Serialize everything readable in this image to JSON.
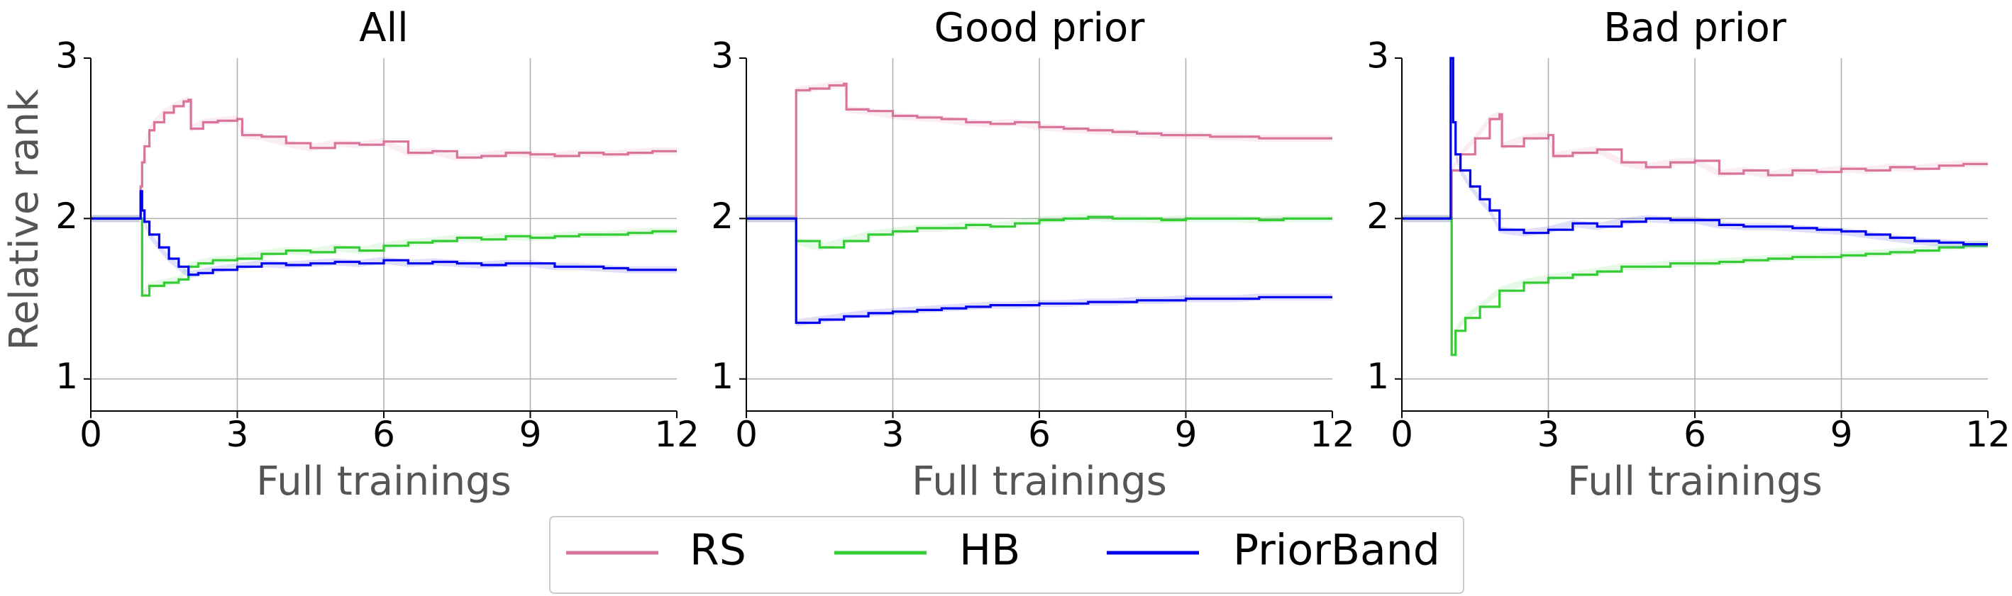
{
  "chart_data": {
    "type": "line",
    "ylabel": "Relative rank",
    "grid": true,
    "legend_position": "bottom-center",
    "series_styles": [
      {
        "name": "RS",
        "color": "#d9739b"
      },
      {
        "name": "HB",
        "color": "#33cc33"
      },
      {
        "name": "PriorBand",
        "color": "#0000ee"
      }
    ],
    "panels": [
      {
        "title": "All",
        "xlabel": "Full trainings",
        "xlim": [
          0,
          12
        ],
        "ylim": [
          0.8,
          3.0
        ],
        "xticks": [
          0,
          3,
          6,
          9,
          12
        ],
        "yticks": [
          1,
          2,
          3
        ],
        "series": [
          {
            "name": "RS",
            "x": [
              0,
              1,
              1.02,
              1.05,
              1.1,
              1.2,
              1.3,
              1.5,
              1.7,
              1.9,
              2.0,
              2.05,
              2.3,
              2.6,
              3.0,
              3.1,
              3.5,
              4.0,
              4.5,
              5.0,
              5.5,
              6.0,
              6.5,
              7.0,
              7.5,
              8.0,
              8.5,
              9.0,
              9.5,
              10.0,
              10.5,
              11.0,
              11.5,
              12
            ],
            "y": [
              2.0,
              2.0,
              2.2,
              2.35,
              2.45,
              2.55,
              2.6,
              2.66,
              2.7,
              2.73,
              2.74,
              2.56,
              2.6,
              2.61,
              2.62,
              2.52,
              2.51,
              2.47,
              2.44,
              2.47,
              2.46,
              2.48,
              2.41,
              2.42,
              2.38,
              2.39,
              2.41,
              2.4,
              2.39,
              2.41,
              2.4,
              2.41,
              2.42,
              2.42
            ]
          },
          {
            "name": "HB",
            "x": [
              0,
              1,
              1.05,
              1.2,
              1.5,
              1.8,
              2.0,
              2.2,
              2.5,
              3.0,
              3.5,
              4.0,
              4.5,
              5.0,
              5.5,
              6.0,
              6.5,
              7.0,
              7.5,
              8.0,
              8.5,
              9.0,
              9.5,
              10.0,
              10.5,
              11.0,
              11.5,
              12
            ],
            "y": [
              2.0,
              2.0,
              1.52,
              1.58,
              1.6,
              1.62,
              1.7,
              1.72,
              1.74,
              1.75,
              1.78,
              1.8,
              1.79,
              1.82,
              1.8,
              1.83,
              1.85,
              1.86,
              1.88,
              1.87,
              1.89,
              1.88,
              1.89,
              1.9,
              1.9,
              1.91,
              1.92,
              1.92
            ]
          },
          {
            "name": "PriorBand",
            "x": [
              0,
              1,
              1.02,
              1.05,
              1.1,
              1.2,
              1.4,
              1.6,
              1.8,
              2.0,
              2.2,
              2.5,
              3.0,
              3.5,
              4.0,
              4.5,
              5.0,
              5.5,
              6.0,
              6.5,
              7.0,
              7.5,
              8.0,
              8.5,
              9.0,
              9.5,
              10.0,
              10.5,
              11.0,
              11.5,
              12
            ],
            "y": [
              2.0,
              2.0,
              2.17,
              2.05,
              1.98,
              1.9,
              1.82,
              1.75,
              1.7,
              1.65,
              1.66,
              1.68,
              1.7,
              1.72,
              1.71,
              1.72,
              1.73,
              1.72,
              1.74,
              1.72,
              1.73,
              1.72,
              1.71,
              1.72,
              1.72,
              1.7,
              1.7,
              1.69,
              1.68,
              1.68,
              1.68
            ]
          }
        ]
      },
      {
        "title": "Good prior",
        "xlabel": "Full trainings",
        "xlim": [
          0,
          12
        ],
        "ylim": [
          0.8,
          3.0
        ],
        "xticks": [
          0,
          3,
          6,
          9,
          12
        ],
        "yticks": [
          1,
          2,
          3
        ],
        "series": [
          {
            "name": "RS",
            "x": [
              0,
              1,
              1.02,
              1.3,
              1.7,
              2.0,
              2.05,
              2.5,
              3.0,
              3.5,
              4.0,
              4.5,
              5.0,
              5.5,
              6.0,
              6.5,
              7.0,
              7.5,
              8.0,
              8.5,
              9.0,
              9.5,
              10.0,
              10.5,
              11.0,
              11.5,
              12
            ],
            "y": [
              2.0,
              2.0,
              2.8,
              2.81,
              2.83,
              2.84,
              2.68,
              2.67,
              2.64,
              2.63,
              2.62,
              2.6,
              2.59,
              2.6,
              2.57,
              2.56,
              2.55,
              2.54,
              2.53,
              2.52,
              2.52,
              2.51,
              2.51,
              2.5,
              2.5,
              2.5,
              2.5
            ]
          },
          {
            "name": "HB",
            "x": [
              0,
              1,
              1.02,
              1.5,
              2.0,
              2.5,
              3.0,
              3.5,
              4.0,
              4.5,
              5.0,
              5.5,
              6.0,
              6.5,
              7.0,
              7.5,
              8.0,
              8.5,
              9.0,
              9.5,
              10.0,
              10.5,
              11.0,
              11.5,
              12
            ],
            "y": [
              2.0,
              2.0,
              1.86,
              1.82,
              1.86,
              1.9,
              1.92,
              1.94,
              1.94,
              1.96,
              1.95,
              1.97,
              1.99,
              2.0,
              2.01,
              2.0,
              2.0,
              1.99,
              2.0,
              2.0,
              2.0,
              1.99,
              2.0,
              2.0,
              2.0
            ]
          },
          {
            "name": "PriorBand",
            "x": [
              0,
              1,
              1.02,
              1.5,
              2.0,
              2.5,
              3.0,
              3.5,
              4.0,
              4.5,
              5.0,
              5.5,
              6.0,
              6.5,
              7.0,
              7.5,
              8.0,
              8.5,
              9.0,
              9.5,
              10.0,
              10.5,
              11.0,
              11.5,
              12
            ],
            "y": [
              2.0,
              2.0,
              1.35,
              1.37,
              1.39,
              1.41,
              1.42,
              1.43,
              1.44,
              1.45,
              1.46,
              1.46,
              1.47,
              1.47,
              1.48,
              1.48,
              1.49,
              1.49,
              1.5,
              1.5,
              1.5,
              1.51,
              1.51,
              1.51,
              1.51
            ]
          }
        ]
      },
      {
        "title": "Bad prior",
        "xlabel": "Full trainings",
        "xlim": [
          0,
          12
        ],
        "ylim": [
          0.8,
          3.0
        ],
        "xticks": [
          0,
          3,
          6,
          9,
          12
        ],
        "yticks": [
          1,
          2,
          3
        ],
        "series": [
          {
            "name": "RS",
            "x": [
              0,
              1,
              1.02,
              1.2,
              1.5,
              1.8,
              2.0,
              2.05,
              2.5,
              3.0,
              3.1,
              3.5,
              4.0,
              4.5,
              5.0,
              5.5,
              6.0,
              6.5,
              7.0,
              7.5,
              8.0,
              8.5,
              9.0,
              9.5,
              10.0,
              10.5,
              11.0,
              11.5,
              12
            ],
            "y": [
              2.0,
              2.0,
              2.3,
              2.4,
              2.5,
              2.62,
              2.65,
              2.45,
              2.5,
              2.52,
              2.39,
              2.41,
              2.43,
              2.35,
              2.32,
              2.35,
              2.36,
              2.28,
              2.3,
              2.27,
              2.3,
              2.29,
              2.31,
              2.3,
              2.32,
              2.31,
              2.33,
              2.34,
              2.34
            ]
          },
          {
            "name": "HB",
            "x": [
              0,
              1,
              1.02,
              1.1,
              1.3,
              1.6,
              2.0,
              2.5,
              3.0,
              3.5,
              4.0,
              4.5,
              5.0,
              5.5,
              6.0,
              6.5,
              7.0,
              7.5,
              8.0,
              8.5,
              9.0,
              9.5,
              10.0,
              10.5,
              11.0,
              11.5,
              12
            ],
            "y": [
              2.0,
              2.0,
              1.15,
              1.3,
              1.38,
              1.45,
              1.55,
              1.6,
              1.63,
              1.65,
              1.67,
              1.7,
              1.7,
              1.72,
              1.72,
              1.73,
              1.74,
              1.75,
              1.76,
              1.76,
              1.77,
              1.78,
              1.79,
              1.8,
              1.82,
              1.83,
              1.84
            ]
          },
          {
            "name": "PriorBand",
            "x": [
              0,
              1,
              1.0,
              1.05,
              1.1,
              1.2,
              1.4,
              1.6,
              1.8,
              2.0,
              2.5,
              3.0,
              3.5,
              4.0,
              4.5,
              5.0,
              5.5,
              6.0,
              6.5,
              7.0,
              7.5,
              8.0,
              8.5,
              9.0,
              9.5,
              10.0,
              10.5,
              11.0,
              11.5,
              12
            ],
            "y": [
              2.0,
              2.0,
              3.0,
              2.6,
              2.4,
              2.3,
              2.2,
              2.12,
              2.05,
              1.93,
              1.91,
              1.93,
              1.97,
              1.95,
              1.98,
              2.0,
              1.99,
              1.99,
              1.96,
              1.95,
              1.95,
              1.94,
              1.93,
              1.92,
              1.9,
              1.88,
              1.86,
              1.85,
              1.84,
              1.84
            ]
          }
        ]
      }
    ]
  },
  "legend": {
    "items": [
      {
        "label": "RS",
        "color": "#d9739b"
      },
      {
        "label": "HB",
        "color": "#33cc33"
      },
      {
        "label": "PriorBand",
        "color": "#0000ee"
      }
    ]
  }
}
